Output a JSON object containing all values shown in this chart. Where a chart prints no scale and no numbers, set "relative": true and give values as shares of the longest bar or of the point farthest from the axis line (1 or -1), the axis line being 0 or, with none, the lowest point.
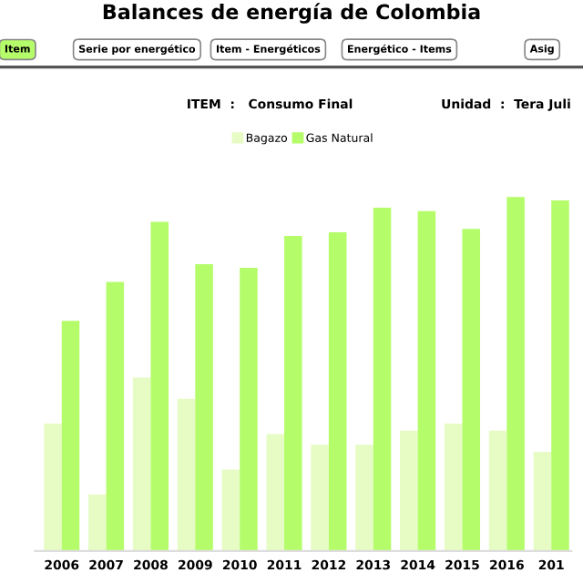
{
  "chart_data": {
    "type": "bar",
    "title": "Balances de energía de Colombia",
    "subtitle": "ITEM  :   Consumo Final                    Unidad  :  Tera Juli",
    "annotations": [
      "Item",
      "Serie por energético",
      "Item - Energéticos",
      "Energético - Items",
      "Asig"
    ],
    "categories": [
      "2006",
      "2007",
      "2008",
      "2009",
      "2010",
      "2011",
      "2012",
      "2013",
      "2014",
      "2015",
      "2016",
      "201"
    ],
    "relative": true,
    "legend": "top",
    "series": [
      {
        "name": "Bagazo",
        "color": "#e6fcc4",
        "values": [
          0.36,
          0.16,
          0.49,
          0.43,
          0.23,
          0.33,
          0.3,
          0.3,
          0.34,
          0.36,
          0.34,
          0.28
        ]
      },
      {
        "name": "Gas Natural",
        "color": "#b5fc6a",
        "values": [
          0.65,
          0.76,
          0.93,
          0.81,
          0.8,
          0.89,
          0.9,
          0.97,
          0.96,
          0.91,
          1.0,
          0.99
        ]
      }
    ]
  }
}
